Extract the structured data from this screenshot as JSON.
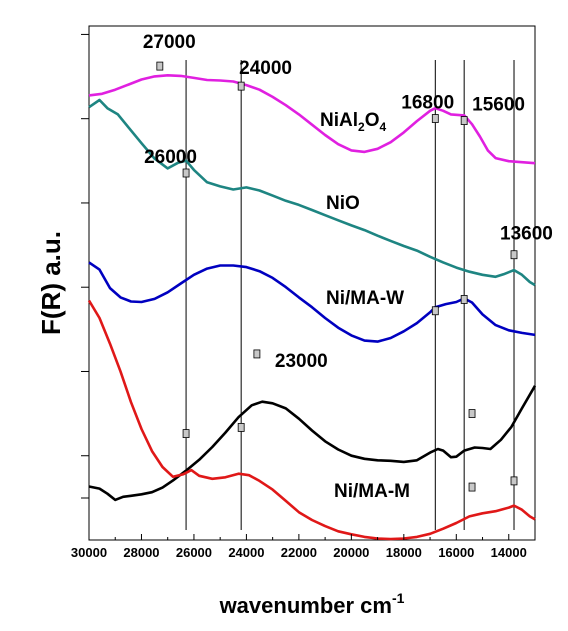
{
  "chart_data": {
    "type": "line",
    "xlabel": "wavenumber cm",
    "xlabel_superscript": "-1",
    "ylabel": "F(R) a.u.",
    "xlim": [
      30000,
      13000
    ],
    "ylim": [
      0,
      100
    ],
    "x_ticks": [
      30000,
      28000,
      26000,
      24000,
      22000,
      20000,
      18000,
      16000,
      14000
    ],
    "y_ticks_unlabeled": 6,
    "vertical_lines": [
      26300,
      24200,
      16800,
      15700,
      13800
    ],
    "series": [
      {
        "name": "NiAl2O4",
        "label_main": "NiAl",
        "label_sub1": "2",
        "label_mid": "O",
        "label_sub2": "4",
        "color": "#e020e0",
        "points": [
          [
            30000,
            86.5
          ],
          [
            29500,
            86.8
          ],
          [
            29000,
            87.6
          ],
          [
            28500,
            88.6
          ],
          [
            28000,
            89.6
          ],
          [
            27500,
            90.2
          ],
          [
            27000,
            90.4
          ],
          [
            26500,
            90.3
          ],
          [
            26000,
            89.9
          ],
          [
            25500,
            89.5
          ],
          [
            25000,
            89.4
          ],
          [
            24500,
            89.2
          ],
          [
            24000,
            88.5
          ],
          [
            23500,
            87.6
          ],
          [
            23000,
            86.2
          ],
          [
            22500,
            84.6
          ],
          [
            22000,
            82.8
          ],
          [
            21500,
            80.8
          ],
          [
            21000,
            78.8
          ],
          [
            20500,
            77.0
          ],
          [
            20000,
            75.8
          ],
          [
            19500,
            75.5
          ],
          [
            19000,
            76.1
          ],
          [
            18500,
            77.4
          ],
          [
            18000,
            79.3
          ],
          [
            17500,
            81.5
          ],
          [
            17000,
            83.5
          ],
          [
            16800,
            84.0
          ],
          [
            16500,
            83.5
          ],
          [
            16200,
            82.8
          ],
          [
            15700,
            82.6
          ],
          [
            15400,
            80.9
          ],
          [
            15100,
            78.5
          ],
          [
            14800,
            75.8
          ],
          [
            14500,
            74.3
          ],
          [
            14000,
            73.7
          ],
          [
            13500,
            73.5
          ],
          [
            13000,
            73.3
          ]
        ]
      },
      {
        "name": "NiO",
        "color": "#1e8582",
        "points": [
          [
            30000,
            84.2
          ],
          [
            29600,
            85.6
          ],
          [
            29300,
            84.0
          ],
          [
            28900,
            82.8
          ],
          [
            28500,
            80.3
          ],
          [
            28000,
            77.2
          ],
          [
            27500,
            74.2
          ],
          [
            27000,
            72.3
          ],
          [
            26600,
            73.4
          ],
          [
            26300,
            73.8
          ],
          [
            26000,
            72.0
          ],
          [
            25500,
            69.6
          ],
          [
            25000,
            68.8
          ],
          [
            24500,
            68.2
          ],
          [
            24000,
            68.6
          ],
          [
            23500,
            68.0
          ],
          [
            23000,
            67.0
          ],
          [
            22500,
            66.0
          ],
          [
            22000,
            65.2
          ],
          [
            21500,
            64.2
          ],
          [
            21000,
            63.2
          ],
          [
            20500,
            62.2
          ],
          [
            20000,
            61.2
          ],
          [
            19500,
            60.3
          ],
          [
            19000,
            59.2
          ],
          [
            18500,
            58.2
          ],
          [
            18000,
            57.2
          ],
          [
            17500,
            56.3
          ],
          [
            17000,
            55.1
          ],
          [
            16500,
            54.0
          ],
          [
            16000,
            53.0
          ],
          [
            15500,
            52.2
          ],
          [
            15000,
            51.6
          ],
          [
            14500,
            51.2
          ],
          [
            14200,
            51.7
          ],
          [
            13800,
            52.5
          ],
          [
            13500,
            51.6
          ],
          [
            13200,
            50.2
          ],
          [
            13000,
            49.6
          ]
        ]
      },
      {
        "name": "Ni/MA-W",
        "color": "#0000c0",
        "points": [
          [
            30000,
            54.0
          ],
          [
            29600,
            52.6
          ],
          [
            29200,
            49.0
          ],
          [
            28800,
            47.2
          ],
          [
            28400,
            46.4
          ],
          [
            28000,
            46.3
          ],
          [
            27500,
            46.9
          ],
          [
            27000,
            48.2
          ],
          [
            26500,
            49.9
          ],
          [
            26000,
            51.6
          ],
          [
            25500,
            52.8
          ],
          [
            25000,
            53.4
          ],
          [
            24500,
            53.4
          ],
          [
            24000,
            53.1
          ],
          [
            23500,
            52.3
          ],
          [
            23000,
            51.0
          ],
          [
            22500,
            49.2
          ],
          [
            22000,
            47.2
          ],
          [
            21500,
            45.3
          ],
          [
            21000,
            43.2
          ],
          [
            20500,
            41.3
          ],
          [
            20000,
            39.8
          ],
          [
            19500,
            38.8
          ],
          [
            19000,
            38.6
          ],
          [
            18500,
            39.3
          ],
          [
            18000,
            40.6
          ],
          [
            17500,
            42.2
          ],
          [
            17000,
            44.3
          ],
          [
            16800,
            45.3
          ],
          [
            16400,
            45.9
          ],
          [
            16000,
            46.3
          ],
          [
            15700,
            47.0
          ],
          [
            15400,
            46.2
          ],
          [
            15000,
            43.9
          ],
          [
            14500,
            41.8
          ],
          [
            14000,
            40.8
          ],
          [
            13500,
            40.3
          ],
          [
            13000,
            39.9
          ]
        ]
      },
      {
        "name": "black",
        "color": "#000000",
        "points": [
          [
            30000,
            10.4
          ],
          [
            29600,
            10.0
          ],
          [
            29300,
            9.0
          ],
          [
            29000,
            7.8
          ],
          [
            28700,
            8.4
          ],
          [
            28400,
            8.6
          ],
          [
            28000,
            8.9
          ],
          [
            27600,
            9.3
          ],
          [
            27200,
            10.2
          ],
          [
            26800,
            11.6
          ],
          [
            26300,
            13.5
          ],
          [
            25800,
            15.6
          ],
          [
            25300,
            18.1
          ],
          [
            24800,
            20.9
          ],
          [
            24300,
            23.9
          ],
          [
            23800,
            26.2
          ],
          [
            23400,
            26.9
          ],
          [
            23000,
            26.6
          ],
          [
            22500,
            25.6
          ],
          [
            22000,
            23.6
          ],
          [
            21500,
            21.3
          ],
          [
            21000,
            19.2
          ],
          [
            20500,
            17.6
          ],
          [
            20000,
            16.4
          ],
          [
            19500,
            15.8
          ],
          [
            19000,
            15.5
          ],
          [
            18500,
            15.4
          ],
          [
            18000,
            15.2
          ],
          [
            17500,
            15.5
          ],
          [
            17000,
            17.0
          ],
          [
            16700,
            17.7
          ],
          [
            16500,
            17.4
          ],
          [
            16200,
            16.1
          ],
          [
            16000,
            16.2
          ],
          [
            15700,
            17.4
          ],
          [
            15300,
            18.0
          ],
          [
            15000,
            17.9
          ],
          [
            14700,
            17.7
          ],
          [
            14300,
            19.5
          ],
          [
            13900,
            22.0
          ],
          [
            13500,
            25.6
          ],
          [
            13000,
            30.0
          ]
        ]
      },
      {
        "name": "Ni/MA-M",
        "color": "#e01818",
        "points": [
          [
            30000,
            46.6
          ],
          [
            29600,
            43.2
          ],
          [
            29200,
            38.2
          ],
          [
            28800,
            32.8
          ],
          [
            28400,
            26.8
          ],
          [
            28000,
            21.6
          ],
          [
            27600,
            17.3
          ],
          [
            27200,
            14.2
          ],
          [
            26800,
            12.3
          ],
          [
            26400,
            12.8
          ],
          [
            26100,
            13.6
          ],
          [
            25800,
            12.5
          ],
          [
            25300,
            11.9
          ],
          [
            24800,
            12.2
          ],
          [
            24300,
            12.9
          ],
          [
            23900,
            12.6
          ],
          [
            23500,
            11.5
          ],
          [
            23000,
            9.8
          ],
          [
            22500,
            7.6
          ],
          [
            22000,
            5.4
          ],
          [
            21500,
            3.9
          ],
          [
            21000,
            2.7
          ],
          [
            20500,
            1.7
          ],
          [
            20000,
            1.1
          ],
          [
            19500,
            0.6
          ],
          [
            19000,
            0.3
          ],
          [
            18500,
            0.2
          ],
          [
            18000,
            0.3
          ],
          [
            17500,
            0.6
          ],
          [
            17000,
            1.2
          ],
          [
            16500,
            2.2
          ],
          [
            16000,
            3.3
          ],
          [
            15500,
            4.6
          ],
          [
            15000,
            5.2
          ],
          [
            14500,
            5.6
          ],
          [
            14000,
            6.3
          ],
          [
            13800,
            6.7
          ],
          [
            13500,
            5.9
          ],
          [
            13200,
            4.6
          ],
          [
            13000,
            4.0
          ]
        ]
      }
    ],
    "series_labels": {
      "nio": "NiO",
      "ni_ma_w": "Ni/MA-W",
      "ni_ma_m": "Ni/MA-M"
    },
    "annotations": [
      {
        "text": "27000",
        "x": 27300,
        "y": 92.2
      },
      {
        "text": "24000",
        "x": 24200,
        "y": 88.3
      },
      {
        "text": "16800",
        "x": 16800,
        "y": 82.0
      },
      {
        "text": "15600",
        "x": 15700,
        "y": 81.6
      },
      {
        "text": "26000",
        "x": 26300,
        "y": 71.4
      },
      {
        "text": "13600",
        "x": 13800,
        "y": 55.5
      },
      {
        "text": "23000",
        "x": 23600,
        "y": 36.2
      }
    ],
    "markers": [
      {
        "x": 27300,
        "y": 92.2
      },
      {
        "x": 24200,
        "y": 88.3
      },
      {
        "x": 16800,
        "y": 82.0
      },
      {
        "x": 15700,
        "y": 81.6
      },
      {
        "x": 26300,
        "y": 71.4
      },
      {
        "x": 13800,
        "y": 55.5
      },
      {
        "x": 16800,
        "y": 44.6
      },
      {
        "x": 15700,
        "y": 46.8
      },
      {
        "x": 23600,
        "y": 36.2
      },
      {
        "x": 15400,
        "y": 24.6
      },
      {
        "x": 26300,
        "y": 20.7
      },
      {
        "x": 24200,
        "y": 21.9
      },
      {
        "x": 15400,
        "y": 10.3
      },
      {
        "x": 13800,
        "y": 11.5
      }
    ]
  }
}
